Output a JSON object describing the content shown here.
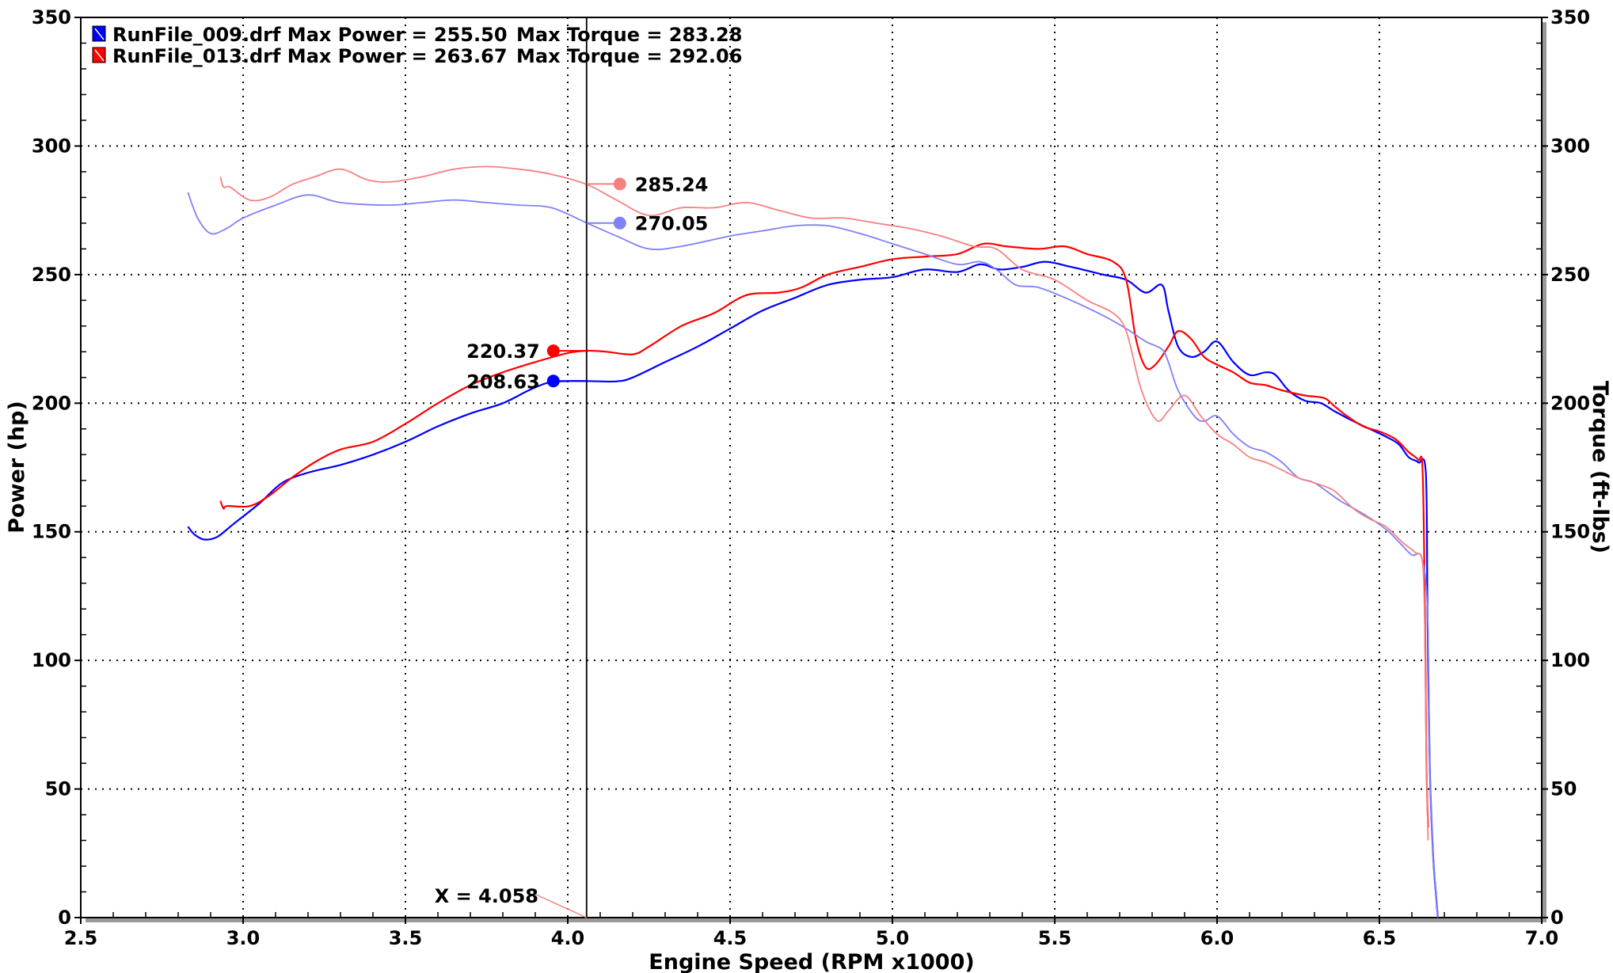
{
  "chart_data": {
    "type": "line",
    "xlabel": "Engine Speed (RPM x1000)",
    "ylabel": "Power (hp)",
    "y2label": "Torque (ft-lbs)",
    "xlim": [
      2.5,
      7.0
    ],
    "ylim": [
      0,
      350
    ],
    "y2lim": [
      0,
      350
    ],
    "x_ticks": [
      "2.5",
      "3.0",
      "3.5",
      "4.0",
      "4.5",
      "5.0",
      "5.5",
      "6.0",
      "6.5",
      "7.0"
    ],
    "y_ticks": [
      "0",
      "50",
      "100",
      "150",
      "200",
      "250",
      "300",
      "350"
    ],
    "y2_ticks": [
      "0",
      "50",
      "100",
      "150",
      "200",
      "250",
      "300",
      "350"
    ],
    "grid": true,
    "legend_position": "top-left",
    "legend": [
      {
        "file": "RunFile_009.drf",
        "power_label": "Max Power = 255.50",
        "torque_label": "Max Torque = 283.28",
        "color": "#0000ff"
      },
      {
        "file": "RunFile_013.drf",
        "power_label": "Max Power = 263.67",
        "torque_label": "Max Torque = 292.06",
        "color": "#ff0000"
      }
    ],
    "cursor": {
      "x": 4.058,
      "label": "X = 4.058"
    },
    "cursor_values": [
      {
        "label": "285.24",
        "value": 285.24,
        "color": "#f88080",
        "kind": "torque"
      },
      {
        "label": "270.05",
        "value": 270.05,
        "color": "#8080f8",
        "kind": "torque"
      },
      {
        "label": "220.37",
        "value": 220.37,
        "color": "#ff0000",
        "kind": "power"
      },
      {
        "label": "208.63",
        "value": 208.63,
        "color": "#0000ff",
        "kind": "power"
      }
    ],
    "series": [
      {
        "name": "RunFile_009.drf Power",
        "axis": "left",
        "color": "#0000ff",
        "width": 2.2,
        "points": [
          [
            2.83,
            152
          ],
          [
            2.85,
            149
          ],
          [
            2.88,
            147
          ],
          [
            2.92,
            148
          ],
          [
            2.97,
            153
          ],
          [
            3.05,
            161
          ],
          [
            3.12,
            169
          ],
          [
            3.2,
            173
          ],
          [
            3.3,
            176
          ],
          [
            3.4,
            180
          ],
          [
            3.5,
            185
          ],
          [
            3.6,
            191
          ],
          [
            3.7,
            196
          ],
          [
            3.8,
            200
          ],
          [
            3.88,
            205
          ],
          [
            3.94,
            208
          ],
          [
            4.0,
            208.6
          ],
          [
            4.06,
            208.6
          ],
          [
            4.15,
            208.5
          ],
          [
            4.2,
            210
          ],
          [
            4.3,
            216
          ],
          [
            4.4,
            222
          ],
          [
            4.5,
            229
          ],
          [
            4.6,
            236
          ],
          [
            4.7,
            241
          ],
          [
            4.8,
            246
          ],
          [
            4.9,
            248
          ],
          [
            5.0,
            249
          ],
          [
            5.1,
            252
          ],
          [
            5.2,
            251
          ],
          [
            5.27,
            254
          ],
          [
            5.33,
            252
          ],
          [
            5.4,
            253
          ],
          [
            5.47,
            255
          ],
          [
            5.55,
            253
          ],
          [
            5.65,
            250
          ],
          [
            5.72,
            248
          ],
          [
            5.78,
            243
          ],
          [
            5.83,
            246
          ],
          [
            5.85,
            236
          ],
          [
            5.88,
            222
          ],
          [
            5.92,
            218
          ],
          [
            5.96,
            220
          ],
          [
            6.0,
            224
          ],
          [
            6.05,
            216
          ],
          [
            6.1,
            211
          ],
          [
            6.15,
            212
          ],
          [
            6.18,
            211
          ],
          [
            6.22,
            205
          ],
          [
            6.27,
            201
          ],
          [
            6.32,
            200
          ],
          [
            6.36,
            197
          ],
          [
            6.42,
            193
          ],
          [
            6.47,
            190
          ],
          [
            6.52,
            187
          ],
          [
            6.56,
            184
          ],
          [
            6.59,
            179
          ],
          [
            6.62,
            177
          ],
          [
            6.643,
            173
          ],
          [
            6.648,
            120
          ],
          [
            6.655,
            60
          ],
          [
            6.665,
            25
          ],
          [
            6.675,
            8
          ],
          [
            6.68,
            0
          ]
        ]
      },
      {
        "name": "RunFile_013.drf Power",
        "axis": "left",
        "color": "#ff0000",
        "width": 2.2,
        "points": [
          [
            2.93,
            162
          ],
          [
            2.94,
            159
          ],
          [
            2.95,
            160
          ],
          [
            3.02,
            160
          ],
          [
            3.08,
            164
          ],
          [
            3.15,
            171
          ],
          [
            3.22,
            177
          ],
          [
            3.3,
            182
          ],
          [
            3.4,
            185
          ],
          [
            3.5,
            192
          ],
          [
            3.6,
            200
          ],
          [
            3.7,
            207
          ],
          [
            3.8,
            212
          ],
          [
            3.9,
            216
          ],
          [
            4.0,
            219.5
          ],
          [
            4.06,
            220.4
          ],
          [
            4.12,
            220
          ],
          [
            4.2,
            219
          ],
          [
            4.25,
            222
          ],
          [
            4.35,
            230
          ],
          [
            4.45,
            235
          ],
          [
            4.55,
            242
          ],
          [
            4.65,
            243
          ],
          [
            4.72,
            245
          ],
          [
            4.8,
            250
          ],
          [
            4.9,
            253
          ],
          [
            5.0,
            256
          ],
          [
            5.1,
            257
          ],
          [
            5.2,
            258
          ],
          [
            5.28,
            262
          ],
          [
            5.35,
            261
          ],
          [
            5.45,
            260
          ],
          [
            5.53,
            261
          ],
          [
            5.6,
            258
          ],
          [
            5.68,
            255
          ],
          [
            5.72,
            248
          ],
          [
            5.75,
            225
          ],
          [
            5.78,
            214
          ],
          [
            5.81,
            215
          ],
          [
            5.85,
            222
          ],
          [
            5.88,
            228
          ],
          [
            5.92,
            225
          ],
          [
            5.96,
            218
          ],
          [
            6.0,
            215
          ],
          [
            6.05,
            212
          ],
          [
            6.1,
            208
          ],
          [
            6.15,
            207
          ],
          [
            6.2,
            205
          ],
          [
            6.27,
            203
          ],
          [
            6.33,
            202
          ],
          [
            6.36,
            199
          ],
          [
            6.4,
            195
          ],
          [
            6.45,
            191
          ],
          [
            6.5,
            189
          ],
          [
            6.55,
            186
          ],
          [
            6.59,
            181
          ],
          [
            6.62,
            178
          ],
          [
            6.633,
            174
          ],
          [
            6.64,
            120
          ],
          [
            6.645,
            60
          ],
          [
            6.65,
            35
          ]
        ]
      },
      {
        "name": "RunFile_009.drf Torque",
        "axis": "right",
        "color": "#8080f8",
        "width": 1.8,
        "points": [
          [
            2.83,
            282
          ],
          [
            2.86,
            272
          ],
          [
            2.9,
            266
          ],
          [
            2.95,
            268
          ],
          [
            3.0,
            272
          ],
          [
            3.1,
            277
          ],
          [
            3.2,
            281
          ],
          [
            3.3,
            278
          ],
          [
            3.45,
            277
          ],
          [
            3.55,
            278
          ],
          [
            3.65,
            279
          ],
          [
            3.75,
            278
          ],
          [
            3.85,
            277
          ],
          [
            3.95,
            276
          ],
          [
            4.06,
            270
          ],
          [
            4.15,
            265
          ],
          [
            4.25,
            260
          ],
          [
            4.35,
            261
          ],
          [
            4.5,
            265
          ],
          [
            4.6,
            267
          ],
          [
            4.7,
            269
          ],
          [
            4.8,
            269
          ],
          [
            4.9,
            266
          ],
          [
            5.0,
            262
          ],
          [
            5.1,
            258
          ],
          [
            5.2,
            254
          ],
          [
            5.27,
            255
          ],
          [
            5.32,
            252
          ],
          [
            5.38,
            246
          ],
          [
            5.45,
            245
          ],
          [
            5.55,
            240
          ],
          [
            5.65,
            234
          ],
          [
            5.72,
            229
          ],
          [
            5.78,
            224
          ],
          [
            5.83,
            221
          ],
          [
            5.85,
            216
          ],
          [
            5.88,
            205
          ],
          [
            5.93,
            195
          ],
          [
            5.96,
            193
          ],
          [
            6.0,
            195
          ],
          [
            6.05,
            188
          ],
          [
            6.1,
            183
          ],
          [
            6.15,
            181
          ],
          [
            6.2,
            177
          ],
          [
            6.25,
            171
          ],
          [
            6.3,
            169
          ],
          [
            6.38,
            162
          ],
          [
            6.45,
            157
          ],
          [
            6.52,
            151
          ],
          [
            6.56,
            146
          ],
          [
            6.6,
            141
          ],
          [
            6.63,
            140
          ],
          [
            6.648,
            120
          ],
          [
            6.655,
            60
          ],
          [
            6.665,
            25
          ],
          [
            6.675,
            8
          ],
          [
            6.68,
            0
          ]
        ]
      },
      {
        "name": "RunFile_013.drf Torque",
        "axis": "right",
        "color": "#f88080",
        "width": 1.8,
        "points": [
          [
            2.93,
            288
          ],
          [
            2.94,
            284
          ],
          [
            2.96,
            284
          ],
          [
            3.02,
            279
          ],
          [
            3.08,
            280
          ],
          [
            3.15,
            285
          ],
          [
            3.22,
            288
          ],
          [
            3.3,
            291
          ],
          [
            3.38,
            287
          ],
          [
            3.45,
            286
          ],
          [
            3.55,
            288
          ],
          [
            3.65,
            291
          ],
          [
            3.75,
            292
          ],
          [
            3.85,
            291
          ],
          [
            3.95,
            289
          ],
          [
            4.06,
            285
          ],
          [
            4.15,
            279
          ],
          [
            4.25,
            273
          ],
          [
            4.35,
            276
          ],
          [
            4.45,
            276
          ],
          [
            4.55,
            278
          ],
          [
            4.65,
            275
          ],
          [
            4.75,
            272
          ],
          [
            4.85,
            272
          ],
          [
            4.95,
            270
          ],
          [
            5.05,
            268
          ],
          [
            5.15,
            265
          ],
          [
            5.25,
            261
          ],
          [
            5.32,
            260
          ],
          [
            5.4,
            252
          ],
          [
            5.5,
            248
          ],
          [
            5.6,
            240
          ],
          [
            5.68,
            235
          ],
          [
            5.72,
            228
          ],
          [
            5.76,
            208
          ],
          [
            5.79,
            198
          ],
          [
            5.82,
            193
          ],
          [
            5.85,
            197
          ],
          [
            5.9,
            203
          ],
          [
            5.95,
            195
          ],
          [
            6.0,
            188
          ],
          [
            6.05,
            184
          ],
          [
            6.1,
            179
          ],
          [
            6.15,
            177
          ],
          [
            6.2,
            174
          ],
          [
            6.25,
            171
          ],
          [
            6.3,
            169
          ],
          [
            6.36,
            166
          ],
          [
            6.42,
            159
          ],
          [
            6.47,
            155
          ],
          [
            6.52,
            152
          ],
          [
            6.57,
            146
          ],
          [
            6.61,
            142
          ],
          [
            6.633,
            138
          ],
          [
            6.64,
            110
          ],
          [
            6.645,
            60
          ],
          [
            6.65,
            30
          ]
        ]
      }
    ]
  }
}
